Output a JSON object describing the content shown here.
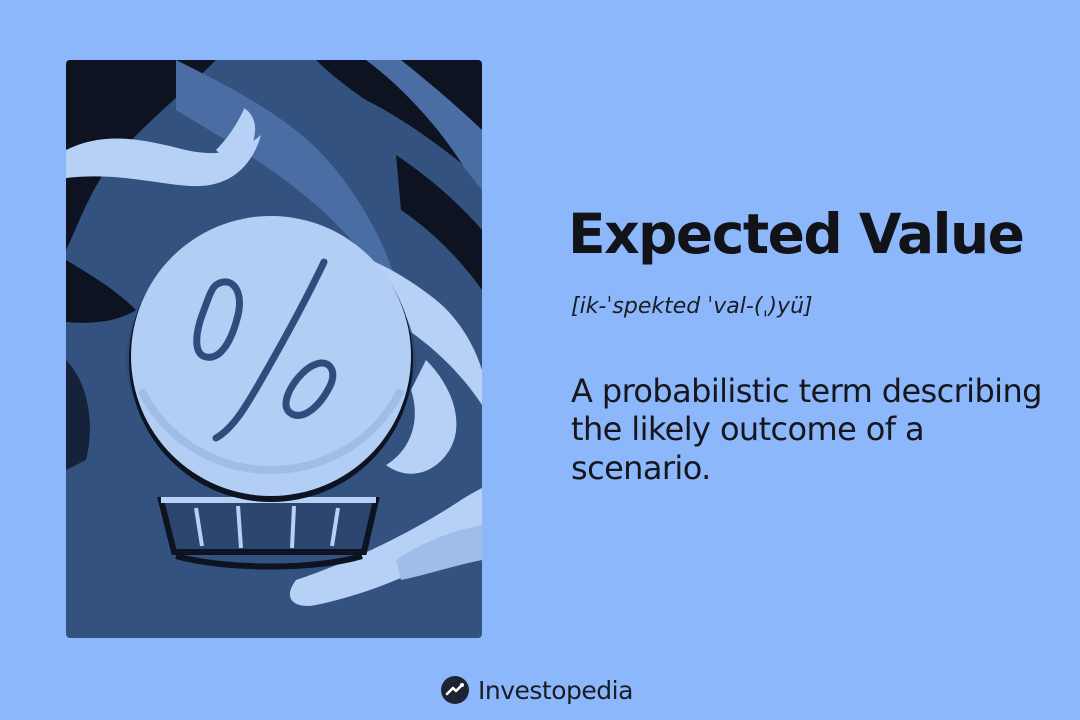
{
  "term": {
    "title": "Expected Value",
    "pronunciation": "[ik-ˈspekted ˈval-(ˌ)yü]",
    "definition": "A probabilistic term describing the likely outcome of a scenario."
  },
  "brand": {
    "name": "Investopedia"
  },
  "colors": {
    "background": "#8db7fb",
    "illustration_navy": "#2f4d7c",
    "illustration_dark": "#0e1420",
    "illustration_light": "#b8d1f7",
    "text": "#111318"
  },
  "icons": {
    "brand_logo": "investopedia-logo-icon",
    "illustration": "crystal-ball-percent-illustration"
  }
}
